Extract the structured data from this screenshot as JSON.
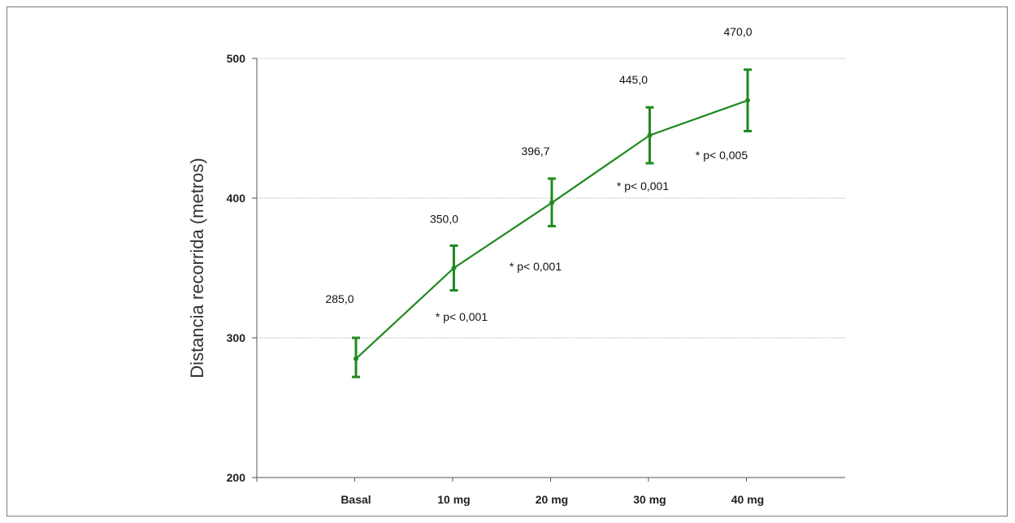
{
  "chart_data": {
    "type": "line",
    "title": "",
    "xlabel": "",
    "ylabel": "Distancia recorrida (metros)",
    "ylim": [
      200,
      500
    ],
    "yticks": [
      200,
      300,
      400,
      500
    ],
    "grid": true,
    "categories": [
      "Basal",
      "10 mg",
      "20 mg",
      "30 mg",
      "40 mg"
    ],
    "series": [
      {
        "values": [
          285.0,
          350.0,
          396.7,
          445.0,
          470.0
        ],
        "error_low": [
          272,
          334,
          380,
          425,
          448
        ],
        "error_high": [
          300,
          366,
          414,
          465,
          492
        ],
        "color": "#1f8a1f"
      }
    ],
    "data_labels": [
      "285,0",
      "350,0",
      "396,7",
      "445,0",
      "470,0"
    ],
    "p_labels": [
      "",
      "* p< 0,001",
      "* p< 0,001",
      "* p< 0,001",
      "* p< 0,005"
    ]
  }
}
